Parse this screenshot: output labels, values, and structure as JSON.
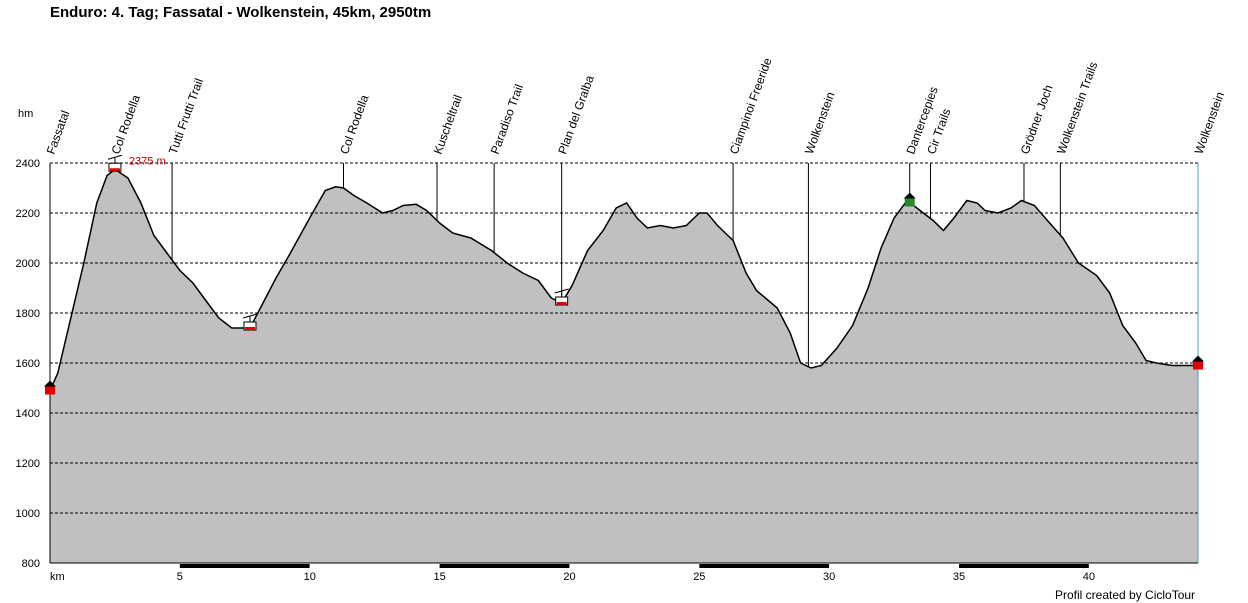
{
  "title": "Enduro: 4. Tag; Fassatal - Wolkenstein, 45km, 2950tm",
  "credit": "Profil created by CicloTour",
  "chart_data": {
    "type": "area",
    "xlabel": "km",
    "ylabel": "hm",
    "xlim": [
      0,
      44.2
    ],
    "ylim": [
      800,
      2400
    ],
    "x_ticks": [
      5,
      10,
      15,
      20,
      25,
      30,
      35,
      40
    ],
    "y_ticks": [
      800,
      1000,
      1200,
      1400,
      1600,
      1800,
      2000,
      2200,
      2400
    ],
    "grid": true,
    "fill_color": "#c0c0c0",
    "line_color": "#000000",
    "annotation": {
      "text": "2375 m",
      "x": 2.5,
      "y": 2375,
      "color": "#c00000"
    },
    "profile": {
      "x": [
        0,
        0.3,
        0.8,
        1.3,
        1.8,
        2.2,
        2.5,
        3.0,
        3.5,
        4.0,
        4.5,
        5.0,
        5.5,
        6.0,
        6.5,
        7.0,
        7.5,
        7.8,
        8.2,
        8.7,
        9.2,
        10.0,
        10.6,
        11.0,
        11.3,
        11.7,
        12.2,
        12.8,
        13.2,
        13.6,
        14.1,
        14.5,
        15.0,
        15.5,
        16.2,
        17.0,
        17.6,
        18.2,
        18.8,
        19.3,
        19.7,
        20.1,
        20.7,
        21.3,
        21.8,
        22.2,
        22.6,
        23.0,
        23.5,
        24.0,
        24.5,
        25.0,
        25.3,
        25.7,
        26.3,
        26.8,
        27.2,
        28.0,
        28.5,
        28.9,
        29.3,
        29.7,
        30.3,
        30.9,
        31.5,
        32.0,
        32.5,
        33.0,
        33.5,
        34.0,
        34.4,
        34.8,
        35.3,
        35.7,
        36.0,
        36.5,
        37.0,
        37.4,
        37.9,
        38.4,
        39.0,
        39.6,
        40.3,
        40.8,
        41.3,
        41.8,
        42.2,
        42.6,
        43.2,
        44.0,
        44.2
      ],
      "y": [
        1490,
        1560,
        1780,
        2000,
        2240,
        2350,
        2375,
        2340,
        2240,
        2110,
        2040,
        1970,
        1920,
        1850,
        1780,
        1740,
        1740,
        1760,
        1840,
        1940,
        2030,
        2180,
        2290,
        2305,
        2300,
        2270,
        2240,
        2200,
        2210,
        2230,
        2235,
        2210,
        2160,
        2120,
        2100,
        2050,
        2000,
        1960,
        1930,
        1860,
        1840,
        1910,
        2050,
        2130,
        2220,
        2240,
        2180,
        2140,
        2150,
        2140,
        2150,
        2200,
        2200,
        2150,
        2090,
        1960,
        1890,
        1820,
        1720,
        1600,
        1580,
        1590,
        1660,
        1750,
        1900,
        2060,
        2180,
        2250,
        2210,
        2170,
        2130,
        2180,
        2250,
        2240,
        2210,
        2200,
        2220,
        2250,
        2230,
        2170,
        2100,
        2000,
        1950,
        1880,
        1750,
        1680,
        1610,
        1600,
        1590,
        1590,
        1590
      ]
    },
    "waypoints": [
      {
        "name": "Fassatal",
        "x": 0.0,
        "marker": "home-red"
      },
      {
        "name": "Col Rodella",
        "x": 2.5,
        "marker": "gondola"
      },
      {
        "name": "Tutti Frutti Trail",
        "x": 4.7,
        "marker": "none"
      },
      {
        "name": "Col Rodella",
        "x": 11.3,
        "marker": "none"
      },
      {
        "name": "Kuscheltrail",
        "x": 14.9,
        "marker": "none"
      },
      {
        "name": "Paradiso Trail",
        "x": 17.1,
        "marker": "none"
      },
      {
        "name": "Plan del Gralba",
        "x": 19.7,
        "marker": "gondola"
      },
      {
        "name": "Ciampinoi Freeride",
        "x": 26.3,
        "marker": "none"
      },
      {
        "name": "Wolkenstein",
        "x": 29.2,
        "marker": "none"
      },
      {
        "name": "Dantercepies",
        "x": 33.1,
        "marker": "home-green"
      },
      {
        "name": "Cir Trails",
        "x": 33.9,
        "marker": "none"
      },
      {
        "name": "Grödner Joch",
        "x": 37.5,
        "marker": "none"
      },
      {
        "name": "Wolkenstein Trails",
        "x": 38.9,
        "marker": "none"
      },
      {
        "name": "Wolkenstein",
        "x": 44.2,
        "marker": "home-red"
      }
    ],
    "gondola_markers": [
      {
        "x": 2.5,
        "y": 2375
      },
      {
        "x": 7.7,
        "y": 1740
      },
      {
        "x": 19.7,
        "y": 1840
      }
    ]
  }
}
